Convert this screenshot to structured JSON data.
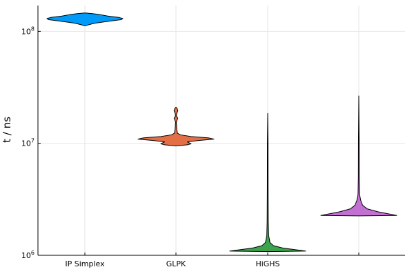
{
  "chart_data": {
    "type": "violin",
    "title": "",
    "xlabel": "",
    "ylabel": "t / ns",
    "yscale": "log10",
    "ylim": [
      1000000,
      170000000
    ],
    "y_ticks": [
      {
        "value": 1000000,
        "base": "10",
        "exp": "6"
      },
      {
        "value": 10000000,
        "base": "10",
        "exp": "7"
      },
      {
        "value": 100000000,
        "base": "10",
        "exp": "8"
      }
    ],
    "grid": true,
    "legend": "none",
    "categories": [
      "IP Simplex",
      "GLPK",
      "HiGHS",
      ""
    ],
    "series": [
      {
        "color": "#009af9",
        "min": 112000000,
        "max": 146000000,
        "profile": [
          {
            "y": 112000000,
            "w": 0.0
          },
          {
            "y": 114000000,
            "w": 0.08
          },
          {
            "y": 118000000,
            "w": 0.25
          },
          {
            "y": 122000000,
            "w": 0.55
          },
          {
            "y": 127000000,
            "w": 0.95
          },
          {
            "y": 130000000,
            "w": 1.0
          },
          {
            "y": 133000000,
            "w": 0.9
          },
          {
            "y": 137000000,
            "w": 0.6
          },
          {
            "y": 141000000,
            "w": 0.4
          },
          {
            "y": 144000000,
            "w": 0.2
          },
          {
            "y": 146000000,
            "w": 0.0
          }
        ]
      },
      {
        "color": "#e26f46",
        "min": 9500000,
        "max": 21000000,
        "profile": [
          {
            "y": 9500000,
            "w": 0.0
          },
          {
            "y": 9700000,
            "w": 0.3
          },
          {
            "y": 9900000,
            "w": 0.4
          },
          {
            "y": 10300000,
            "w": 0.3
          },
          {
            "y": 10600000,
            "w": 0.6
          },
          {
            "y": 10900000,
            "w": 1.0
          },
          {
            "y": 11200000,
            "w": 0.85
          },
          {
            "y": 11500000,
            "w": 0.4
          },
          {
            "y": 11900000,
            "w": 0.12
          },
          {
            "y": 12300000,
            "w": 0.04
          },
          {
            "y": 13500000,
            "w": 0.02
          },
          {
            "y": 15500000,
            "w": 0.01
          },
          {
            "y": 16800000,
            "w": 0.05
          },
          {
            "y": 17500000,
            "w": 0.01
          },
          {
            "y": 18500000,
            "w": 0.02
          },
          {
            "y": 19500000,
            "w": 0.05
          },
          {
            "y": 20500000,
            "w": 0.03
          },
          {
            "y": 21000000,
            "w": 0.0
          }
        ]
      },
      {
        "color": "#3da44d",
        "min": 1080000,
        "max": 18500000,
        "profile": [
          {
            "y": 1080000,
            "w": 0.0
          },
          {
            "y": 1090000,
            "w": 1.0
          },
          {
            "y": 1120000,
            "w": 0.75
          },
          {
            "y": 1160000,
            "w": 0.4
          },
          {
            "y": 1220000,
            "w": 0.15
          },
          {
            "y": 1300000,
            "w": 0.06
          },
          {
            "y": 1500000,
            "w": 0.025
          },
          {
            "y": 2000000,
            "w": 0.015
          },
          {
            "y": 4000000,
            "w": 0.01
          },
          {
            "y": 10000000,
            "w": 0.008
          },
          {
            "y": 18500000,
            "w": 0.0
          }
        ]
      },
      {
        "color": "#c271d2",
        "min": 2250000,
        "max": 26500000,
        "profile": [
          {
            "y": 2250000,
            "w": 0.0
          },
          {
            "y": 2270000,
            "w": 1.0
          },
          {
            "y": 2340000,
            "w": 0.8
          },
          {
            "y": 2450000,
            "w": 0.5
          },
          {
            "y": 2600000,
            "w": 0.22
          },
          {
            "y": 2800000,
            "w": 0.1
          },
          {
            "y": 3100000,
            "w": 0.05
          },
          {
            "y": 3500000,
            "w": 0.02
          },
          {
            "y": 5000000,
            "w": 0.012
          },
          {
            "y": 10000000,
            "w": 0.01
          },
          {
            "y": 26500000,
            "w": 0.0
          }
        ]
      }
    ]
  }
}
